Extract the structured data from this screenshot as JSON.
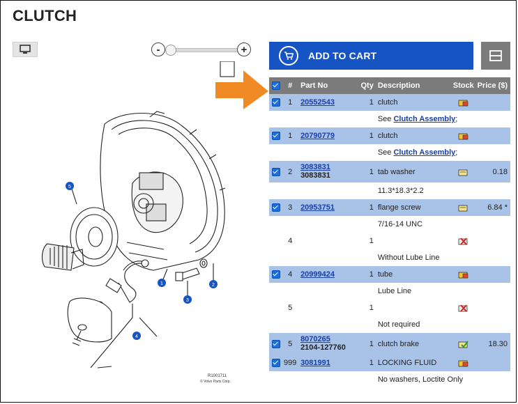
{
  "title": "CLUTCH",
  "toolbar": {
    "zoom_minus": "-",
    "zoom_plus": "+",
    "zoom_level": 0.1
  },
  "cart": {
    "add_label": "ADD TO CART"
  },
  "table": {
    "headers": {
      "num": "#",
      "part": "Part No",
      "qty": "Qty",
      "desc": "Description",
      "stock": "Stock",
      "price": "Price ($)"
    },
    "rows": [
      {
        "num": "1",
        "part": "20552543",
        "part_alt": "",
        "qty": "1",
        "desc": "clutch",
        "stock": "stock-partial-icon",
        "price": "",
        "note_pre": "See ",
        "note_link": "Clutch Assembly",
        "note_post": ";"
      },
      {
        "num": "1",
        "part": "20790779",
        "part_alt": "",
        "qty": "1",
        "desc": "clutch",
        "stock": "stock-partial-icon",
        "price": "",
        "note_pre": "See ",
        "note_link": "Clutch Assembly",
        "note_post": ";"
      },
      {
        "num": "2",
        "part": "3083831",
        "part_alt": "3083831",
        "qty": "1",
        "desc": "tab washer",
        "stock": "stock-available-icon",
        "price": "0.18",
        "note": "11.3*18.3*2.2"
      },
      {
        "num": "3",
        "part": "20953751",
        "part_alt": "",
        "qty": "1",
        "desc": "flange screw",
        "stock": "stock-available-icon",
        "price": "6.84 *",
        "note": "7/16-14 UNC"
      },
      {
        "num": "4",
        "qty": "1",
        "stock": "stock-unavailable-icon",
        "note": "Without Lube Line"
      },
      {
        "num": "4",
        "part": "20999424",
        "qty": "1",
        "desc": "tube",
        "stock": "stock-partial-icon",
        "price": "",
        "note": "Lube Line"
      },
      {
        "num": "5",
        "qty": "1",
        "stock": "stock-unavailable-icon",
        "note": "Not required"
      },
      {
        "num": "5",
        "part": "8070265",
        "part_alt": "2104-127760",
        "qty": "1",
        "desc": "clutch brake",
        "stock": "stock-instock-icon",
        "price": "18.30"
      },
      {
        "num": "999",
        "part": "3081991",
        "qty": "1",
        "desc": "LOCKING FLUID",
        "stock": "stock-partial-icon",
        "price": "",
        "note": "No washers, Loctite Only"
      }
    ]
  },
  "drawing": {
    "callouts": [
      "1",
      "2",
      "3",
      "4",
      "5"
    ],
    "ref": "R1001711",
    "copyright": "© Volvo Parts Corp."
  },
  "colors": {
    "accent": "#1654c4",
    "row_highlight": "#a9c2e8",
    "header_bg": "#7b7b7b",
    "pointer_arrow": "#f08a24"
  }
}
